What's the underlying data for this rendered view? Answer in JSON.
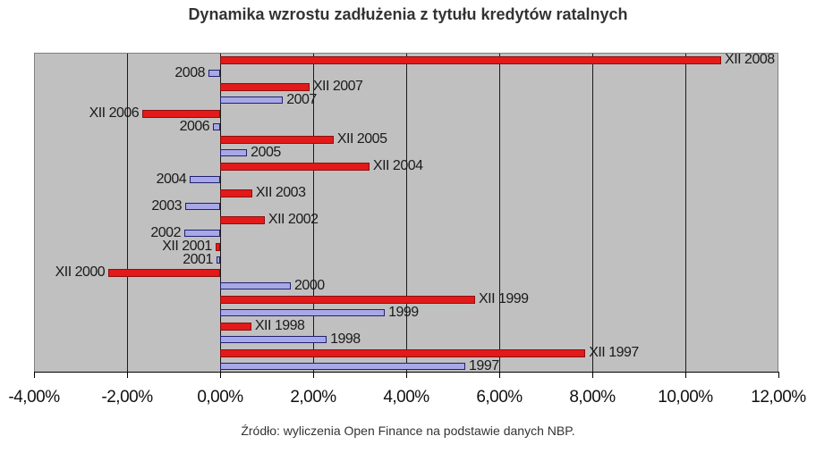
{
  "title": "Dynamika wzrostu zadłużenia z tytułu kredytów ratalnych",
  "source": "Źródło: wyliczenia Open Finance na podstawie danych NBP.",
  "colors": {
    "december_series": "#e31a1a",
    "annual_series": "#a8a8e8",
    "plot_background": "#c0c0c0"
  },
  "x_ticks": [
    "-4,00%",
    "-2,00%",
    "0,00%",
    "2,00%",
    "4,00%",
    "6,00%",
    "8,00%",
    "10,00%",
    "12,00%"
  ],
  "chart_data": {
    "type": "bar",
    "orientation": "horizontal",
    "title": "Dynamika wzrostu zadłużenia z tytułu kredytów ratalnych",
    "xlabel": "",
    "ylabel": "",
    "xlim": [
      -4,
      12
    ],
    "x_tick_labels": [
      "-4,00%",
      "-2,00%",
      "0,00%",
      "2,00%",
      "4,00%",
      "6,00%",
      "8,00%",
      "10,00%",
      "12,00%"
    ],
    "grid": "vertical",
    "legend": null,
    "unit": "%",
    "bars": [
      {
        "label": "XII 2008",
        "value": 10.77,
        "series": "XII"
      },
      {
        "label": "2008",
        "value": -0.25,
        "series": "annual"
      },
      {
        "label": "XII 2007",
        "value": 1.92,
        "series": "XII"
      },
      {
        "label": "2007",
        "value": 1.35,
        "series": "annual"
      },
      {
        "label": "XII 2006",
        "value": -1.67,
        "series": "XII"
      },
      {
        "label": "2006",
        "value": -0.15,
        "series": "annual"
      },
      {
        "label": "XII 2005",
        "value": 2.44,
        "series": "XII"
      },
      {
        "label": "2005",
        "value": 0.58,
        "series": "annual"
      },
      {
        "label": "XII 2004",
        "value": 3.21,
        "series": "XII"
      },
      {
        "label": "2004",
        "value": -0.65,
        "series": "annual"
      },
      {
        "label": "XII 2003",
        "value": 0.69,
        "series": "XII"
      },
      {
        "label": "2003",
        "value": -0.75,
        "series": "annual"
      },
      {
        "label": "XII 2002",
        "value": 0.96,
        "series": "XII"
      },
      {
        "label": "2002",
        "value": -0.77,
        "series": "annual"
      },
      {
        "label": "XII 2001",
        "value": -0.1,
        "series": "XII"
      },
      {
        "label": "2001",
        "value": -0.08,
        "series": "annual"
      },
      {
        "label": "XII 2000",
        "value": -2.4,
        "series": "XII"
      },
      {
        "label": "2000",
        "value": 1.52,
        "series": "annual"
      },
      {
        "label": "XII 1999",
        "value": 5.48,
        "series": "XII"
      },
      {
        "label": "1999",
        "value": 3.54,
        "series": "annual"
      },
      {
        "label": "XII 1998",
        "value": 0.67,
        "series": "XII"
      },
      {
        "label": "1998",
        "value": 2.29,
        "series": "annual"
      },
      {
        "label": "XII 1997",
        "value": 7.85,
        "series": "XII"
      },
      {
        "label": "1997",
        "value": 5.27,
        "series": "annual"
      }
    ]
  }
}
